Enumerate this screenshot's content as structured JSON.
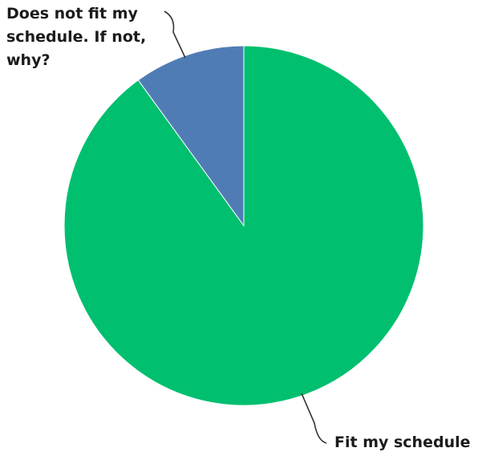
{
  "chart_data": {
    "type": "pie",
    "slices": [
      {
        "label": "Fit my schedule",
        "value": 90,
        "color": "#00bf6f"
      },
      {
        "label": "Does not fit my schedule. If not, why?",
        "value": 10,
        "color": "#507cb6"
      }
    ],
    "label_lines": [
      [
        "Fit my schedule"
      ],
      [
        "Does not fit my",
        "schedule. If not,",
        "why?"
      ]
    ],
    "start_angle": "12 o'clock",
    "direction": "clockwise",
    "legend": "none",
    "background": "#ffffff"
  }
}
